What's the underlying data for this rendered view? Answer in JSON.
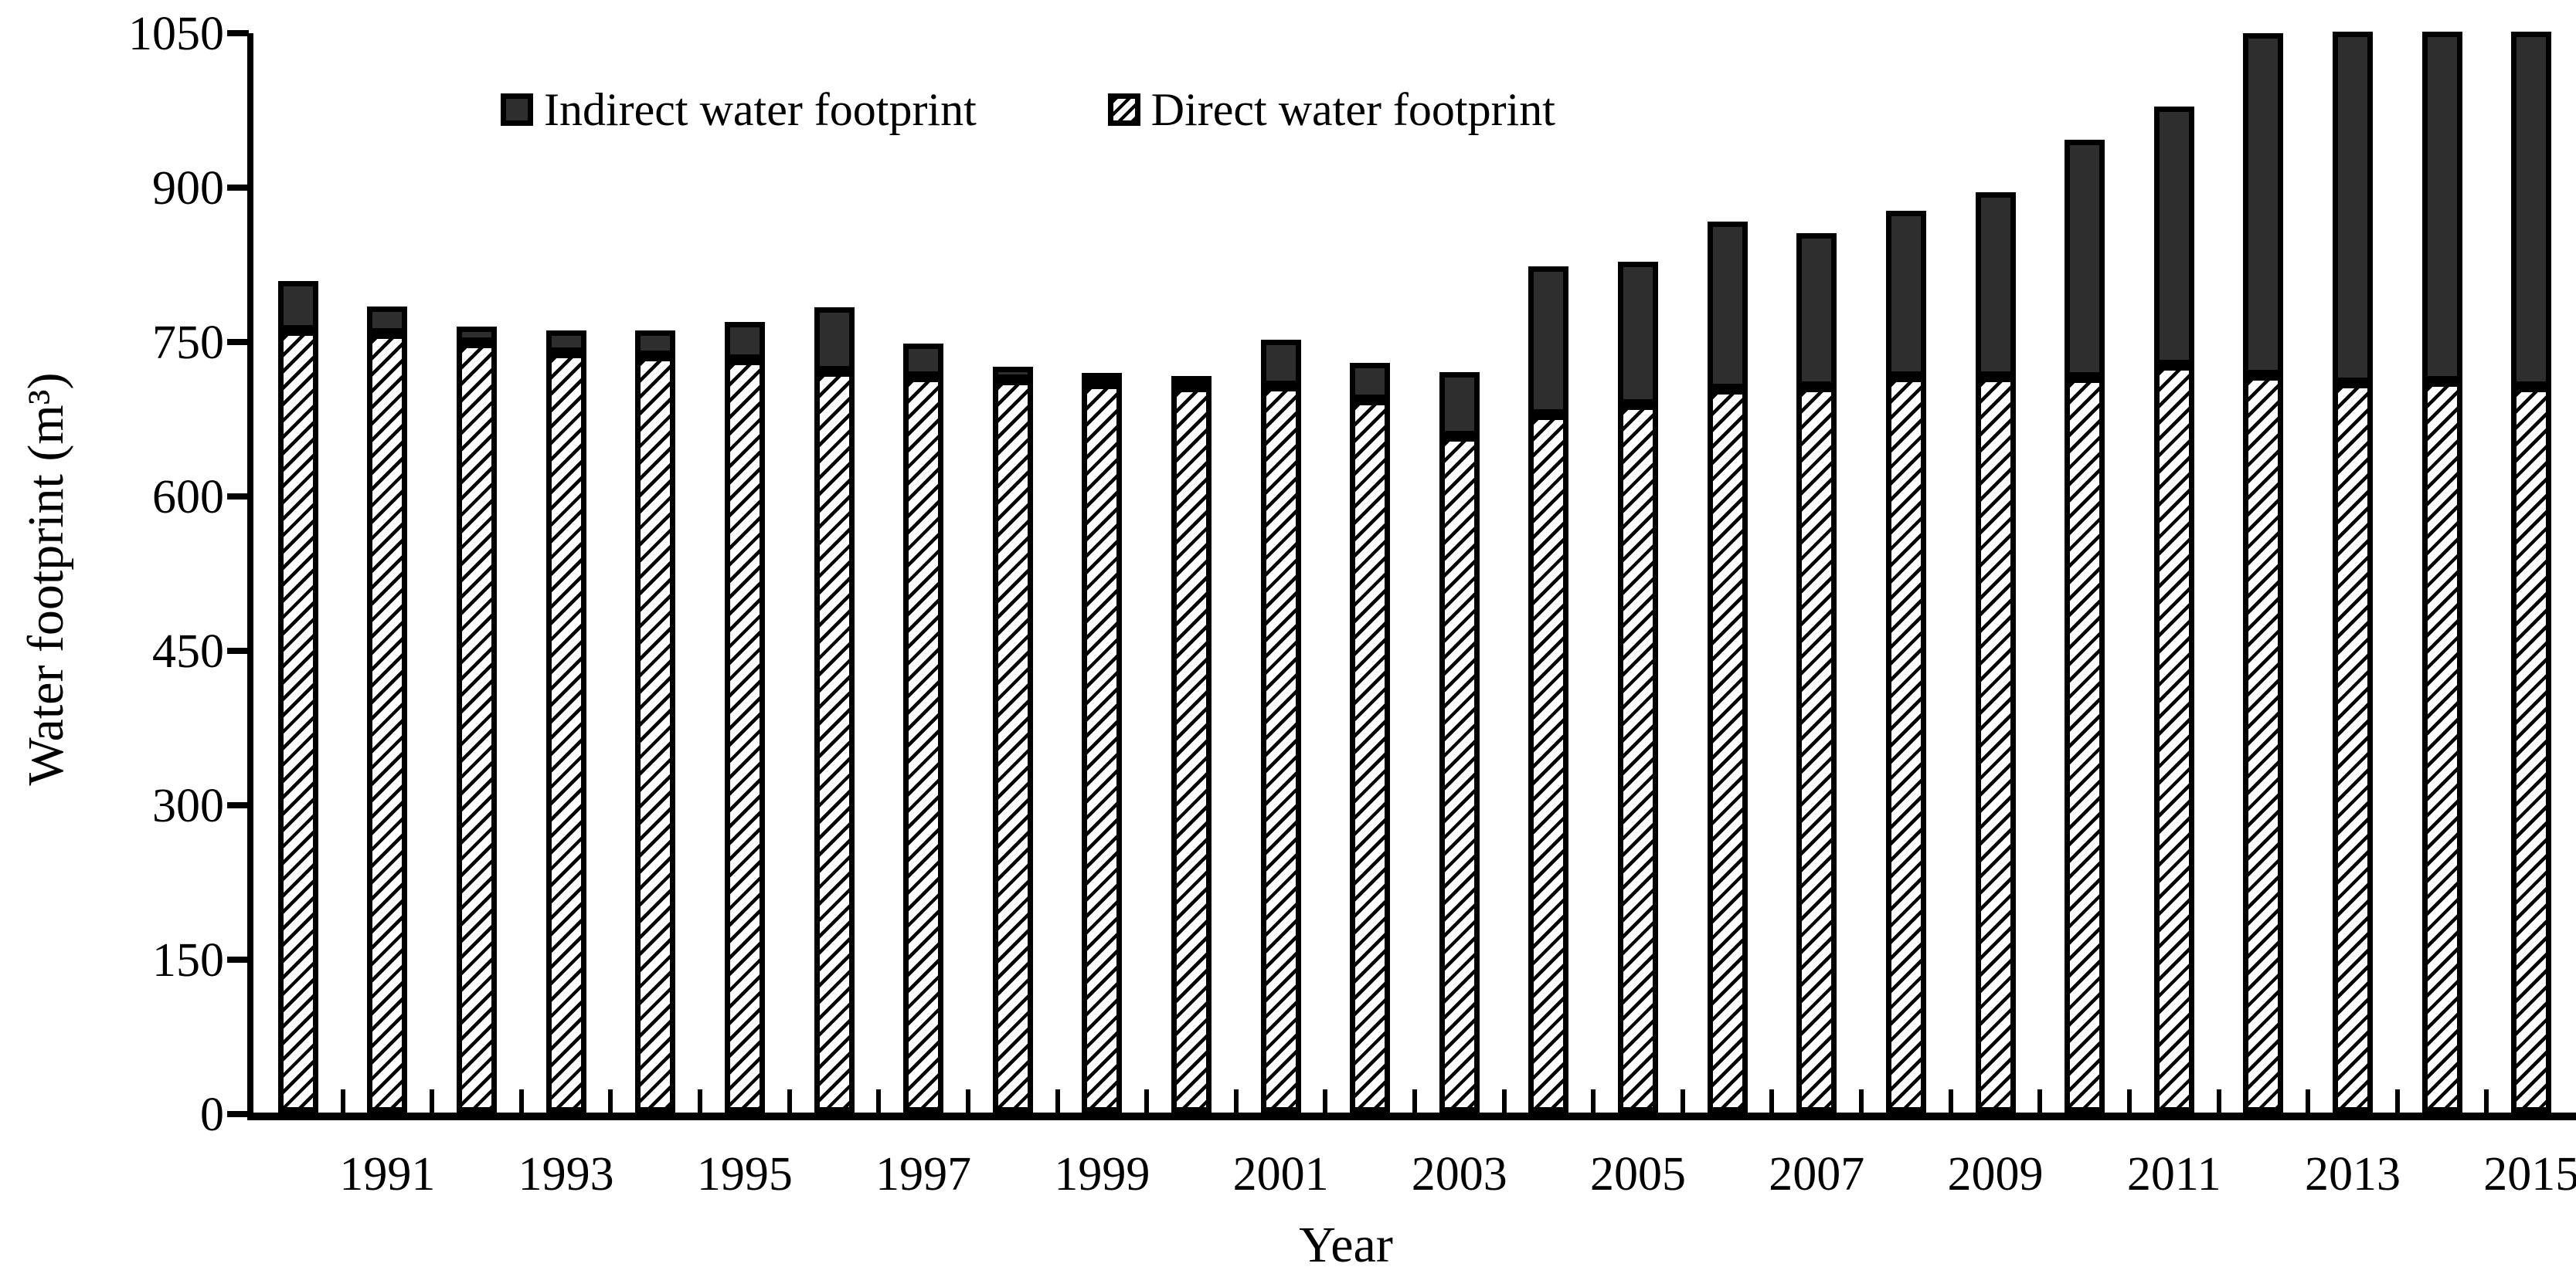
{
  "chart": {
    "ylabel": "Water footprint (m³)",
    "xlabel": "Year",
    "legend": {
      "indirect_label": "Indirect water footprint",
      "direct_label": "Direct water footprint"
    }
  },
  "chart_data": {
    "type": "bar",
    "stacked": true,
    "title": "",
    "xlabel": "Year",
    "ylabel": "Water footprint (m³)",
    "ylim": [
      0,
      1050
    ],
    "yticks": [
      0,
      150,
      300,
      450,
      600,
      750,
      900,
      1050
    ],
    "grid": false,
    "legend_position": "top-inside",
    "legend_entries": [
      "Indirect water footprint",
      "Direct water footprint"
    ],
    "categories": [
      "1990",
      "1991",
      "1992",
      "1993",
      "1994",
      "1995",
      "1996",
      "1997",
      "1998",
      "1999",
      "2000",
      "2001",
      "2002",
      "2003",
      "2004",
      "2005",
      "2006",
      "2007",
      "2008",
      "2009",
      "2010",
      "2011",
      "2012",
      "2013",
      "2014",
      "2015"
    ],
    "xtick_labeled_years": [
      "1991",
      "1993",
      "1995",
      "1997",
      "1999",
      "2001",
      "2003",
      "2005",
      "2007",
      "2009",
      "2011",
      "2013",
      "2015"
    ],
    "series": [
      {
        "name": "Direct water footprint",
        "style": "diagonal-hatch",
        "values": [
          760,
          757,
          748,
          738,
          735,
          731,
          720,
          715,
          712,
          708,
          705,
          706,
          692,
          657,
          678,
          688,
          703,
          705,
          715,
          715,
          714,
          726,
          716,
          709,
          710,
          705
        ]
      },
      {
        "name": "Indirect water footprint",
        "style": "solid",
        "color": "#2e2e2e",
        "values": [
          48,
          26,
          16,
          22,
          25,
          37,
          62,
          32,
          13,
          7,
          5,
          45,
          36,
          62,
          144,
          139,
          163,
          149,
          161,
          179,
          231,
          251,
          332,
          341,
          340,
          345
        ]
      }
    ],
    "totals": [
      808,
      783,
      764,
      760,
      760,
      768,
      782,
      747,
      725,
      715,
      710,
      751,
      728,
      719,
      822,
      827,
      866,
      854,
      876,
      894,
      945,
      977,
      1048,
      1050,
      1050,
      1050
    ]
  },
  "colors": {
    "background": "#ffffff",
    "text": "#000000",
    "axis": "#000000",
    "bar_border": "#000000",
    "indirect_fill": "#2e2e2e",
    "hatch": "#000000"
  }
}
